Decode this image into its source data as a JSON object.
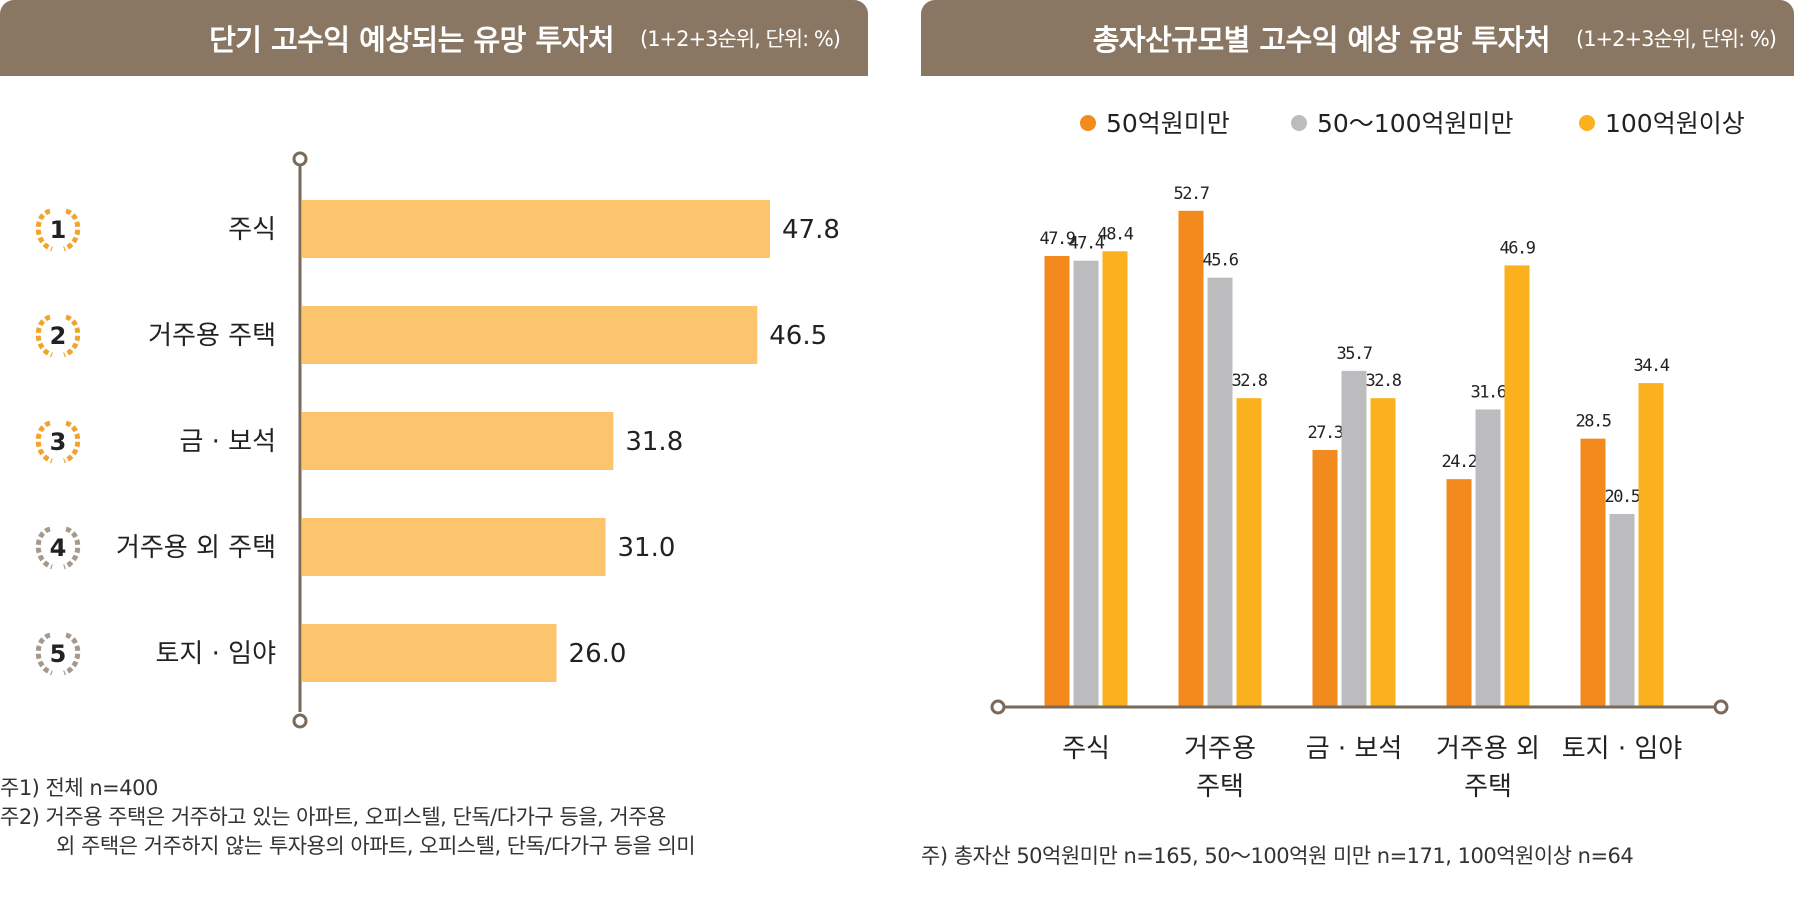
{
  "left_panel": {
    "title": "단기 고수익 예상되는 유망 투자처",
    "subtitle": "(1+2+3순위, 단위: %)",
    "notes": [
      "주1) 전체 n=400",
      "주2) 거주용 주택은 거주하고 있는 아파트, 오피스텔, 단독/다가구 등을, 거주용",
      "외 주택은 거주하지 않는 투자용의 아파트, 오피스텔, 단독/다가구 등을 의미"
    ]
  },
  "right_panel": {
    "title": "총자산규모별 고수익 예상 유망 투자처",
    "subtitle": "(1+2+3순위, 단위: %)",
    "note": "주) 총자산 50억원미만 n=165, 50～100억원 미만 n=171, 100억원이상 n=64"
  },
  "colors": {
    "header_bg": "#8a7763",
    "bar_light": "#fdc46e",
    "axis": "#7a6a5a",
    "series": [
      "#f28a1e",
      "#bcbcbe",
      "#fbb01d"
    ],
    "rank_gold": "#f1a42d",
    "rank_gray": "#a6998b"
  },
  "chart_data": [
    {
      "type": "bar",
      "orientation": "horizontal",
      "title": "단기 고수익 예상되는 유망 투자처",
      "ranks": [
        "1",
        "2",
        "3",
        "4",
        "5"
      ],
      "rank_icon": "laurel-wreath-icon",
      "categories": [
        "주식",
        "거주용 주택",
        "금 · 보석",
        "거주용 외 주택",
        "토지 · 임야"
      ],
      "values": [
        47.8,
        46.5,
        31.8,
        31.0,
        26.0
      ],
      "labels": [
        "47.8",
        "46.5",
        "31.8",
        "31.0",
        "26.0"
      ],
      "xlim": [
        0,
        60
      ]
    },
    {
      "type": "bar",
      "title": "총자산규모별 고수익 예상 유망 투자처",
      "categories": [
        [
          "주식"
        ],
        [
          "거주용",
          "주택"
        ],
        [
          "금 · 보석"
        ],
        [
          "거주용 외",
          "주택"
        ],
        [
          "토지 · 임야"
        ]
      ],
      "series": [
        {
          "name": "50억원미만",
          "values": [
            47.9,
            52.7,
            27.3,
            24.2,
            28.5
          ],
          "labels": [
            "47.9",
            "52.7",
            "27.3",
            "24.2",
            "28.5"
          ]
        },
        {
          "name": "50～100억원미만",
          "values": [
            47.4,
            45.6,
            35.7,
            31.6,
            20.5
          ],
          "labels": [
            "47.4",
            "45.6",
            "35.7",
            "31.6",
            "20.5"
          ]
        },
        {
          "name": "100억원이상",
          "values": [
            48.4,
            32.8,
            32.8,
            46.9,
            34.4
          ],
          "labels": [
            "48.4",
            "32.8",
            "32.8",
            "46.9",
            "34.4"
          ]
        }
      ],
      "legend_position": "top",
      "ylim": [
        0,
        60
      ]
    }
  ]
}
